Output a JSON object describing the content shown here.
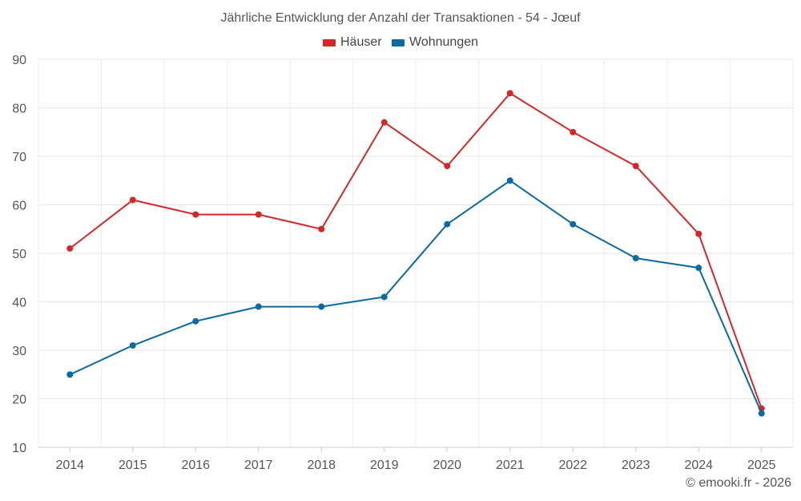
{
  "chart_data": {
    "type": "line",
    "title": "Jährliche Entwicklung der Anzahl der Transaktionen - 54 - Jœuf",
    "categories": [
      "2014",
      "2015",
      "2016",
      "2017",
      "2018",
      "2019",
      "2020",
      "2021",
      "2022",
      "2023",
      "2024",
      "2025"
    ],
    "series": [
      {
        "name": "Häuser",
        "color": "#d62728",
        "values": [
          51,
          61,
          58,
          58,
          55,
          77,
          68,
          83,
          75,
          68,
          54,
          18
        ]
      },
      {
        "name": "Wohnungen",
        "color": "#0a6aa1",
        "values": [
          25,
          31,
          36,
          39,
          39,
          41,
          56,
          65,
          56,
          49,
          47,
          17
        ]
      }
    ],
    "ylim": [
      10,
      90
    ],
    "yticks": [
      10,
      20,
      30,
      40,
      50,
      60,
      70,
      80,
      90
    ],
    "xlabel": "",
    "ylabel": "",
    "grid": true,
    "legend_position": "top-center"
  },
  "credit": "© emooki.fr - 2026"
}
